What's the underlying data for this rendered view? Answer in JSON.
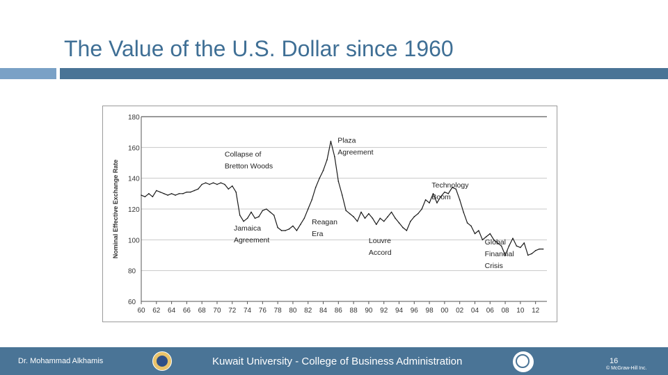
{
  "slide": {
    "title": "The Value of the U.S. Dollar since 1960"
  },
  "footer": {
    "presenter": "Dr. Mohammad Alkhamis",
    "institution": "Kuwait University - College of Business Administration",
    "page_number": "16",
    "copyright": "© McGraw-Hill Inc."
  },
  "colors": {
    "title": "#3f6f95",
    "accent_bar": "#4a7496",
    "accent_bar_light": "#7aa1c6",
    "series": "#1a1a1a",
    "grid": "#c8c8c8"
  },
  "icons": {
    "left_logo": "university-seal-icon",
    "right_logo": "aacsb-accreditation-icon"
  },
  "chart_data": {
    "type": "line",
    "title": "",
    "xlabel": "",
    "ylabel": "Nominal Effective Exchange Rate",
    "ylim": [
      60,
      180
    ],
    "y_ticks": [
      "180",
      "160",
      "140",
      "120",
      "100",
      "80",
      "60"
    ],
    "x_tick_labels": [
      "60",
      "62",
      "64",
      "66",
      "68",
      "70",
      "72",
      "74",
      "76",
      "78",
      "80",
      "82",
      "84",
      "86",
      "88",
      "90",
      "92",
      "94",
      "96",
      "98",
      "00",
      "02",
      "04",
      "06",
      "08",
      "10",
      "12"
    ],
    "grid": "horizontal",
    "legend": "none",
    "series": [
      {
        "x": [
          1960.0,
          1960.5,
          1961.0,
          1961.5,
          1962.0,
          1962.5,
          1963.0,
          1963.5,
          1964.0,
          1964.5,
          1965.0,
          1965.5,
          1966.0,
          1966.5,
          1967.0,
          1967.5,
          1968.0,
          1968.5,
          1969.0,
          1969.5,
          1970.0,
          1970.5,
          1971.0,
          1971.5,
          1972.0,
          1972.5,
          1973.0,
          1973.5,
          1974.0,
          1974.5,
          1975.0,
          1975.5,
          1976.0,
          1976.5,
          1977.0,
          1977.5,
          1978.0,
          1978.5,
          1979.0,
          1979.5,
          1980.0,
          1980.5,
          1981.0,
          1981.5,
          1982.0,
          1982.5,
          1983.0,
          1983.5,
          1984.0,
          1984.5,
          1985.0,
          1985.5,
          1986.0,
          1986.5,
          1987.0,
          1987.5,
          1988.0,
          1988.5,
          1989.0,
          1989.5,
          1990.0,
          1990.5,
          1991.0,
          1991.5,
          1992.0,
          1992.5,
          1993.0,
          1993.5,
          1994.0,
          1994.5,
          1995.0,
          1995.5,
          1996.0,
          1996.5,
          1997.0,
          1997.5,
          1998.0,
          1998.5,
          1999.0,
          1999.5,
          2000.0,
          2000.5,
          2001.0,
          2001.5,
          2002.0,
          2002.5,
          2003.0,
          2003.5,
          2004.0,
          2004.5,
          2005.0,
          2005.5,
          2006.0,
          2006.5,
          2007.0,
          2007.5,
          2008.0,
          2008.5,
          2009.0,
          2009.5,
          2010.0,
          2010.5,
          2011.0,
          2011.5,
          2012.0,
          2012.5,
          2013.0
        ],
        "values": [
          129,
          128,
          130,
          128,
          132,
          131,
          130,
          129,
          130,
          129,
          130,
          130,
          131,
          131,
          132,
          133,
          136,
          137,
          136,
          137,
          136,
          137,
          136,
          133,
          135,
          131,
          116,
          112,
          114,
          118,
          114,
          115,
          119,
          120,
          118,
          116,
          108,
          106,
          106,
          107,
          109,
          106,
          110,
          114,
          120,
          126,
          134,
          140,
          145,
          152,
          164,
          154,
          138,
          129,
          119,
          117,
          115,
          112,
          118,
          114,
          117,
          114,
          110,
          114,
          112,
          115,
          118,
          114,
          111,
          108,
          106,
          112,
          115,
          117,
          120,
          126,
          124,
          130,
          124,
          128,
          131,
          130,
          134,
          133,
          126,
          118,
          111,
          109,
          104,
          106,
          100,
          102,
          104,
          100,
          98,
          96,
          90,
          96,
          101,
          96,
          95,
          98,
          90,
          91,
          93,
          94,
          94
        ]
      }
    ],
    "annotations": [
      {
        "x": 1971.0,
        "y": 154,
        "text": "Collapse of\nBretton Woods"
      },
      {
        "x": 1985.9,
        "y": 163,
        "text": "Plaza\nAgreement"
      },
      {
        "x": 1998.3,
        "y": 134,
        "text": "Technology\nBoom"
      },
      {
        "x": 1972.2,
        "y": 106,
        "text": "Jamaica\nAgreement"
      },
      {
        "x": 1982.5,
        "y": 110,
        "text": "Reagan\nEra"
      },
      {
        "x": 1990.0,
        "y": 98,
        "text": "Louvre\nAccord"
      },
      {
        "x": 2005.3,
        "y": 97,
        "text": "Global\nFinancial\nCrisis"
      }
    ]
  }
}
